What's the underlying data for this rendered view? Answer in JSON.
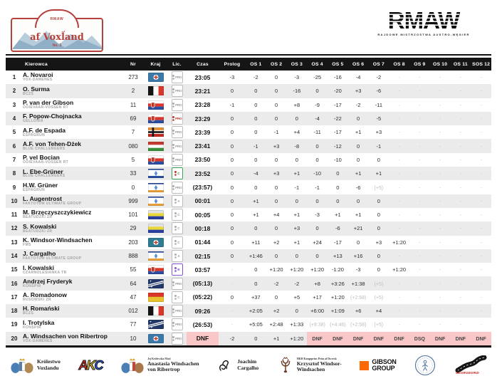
{
  "header": {
    "plate": {
      "series": "RMAW",
      "title": [
        "Rallye",
        "af Voxland"
      ],
      "edition": "No. 3"
    },
    "championship": {
      "logo": "RMAW",
      "subtitle": "RAJDOWE MISTRZOSTWA AUSTRO-WĘGIER"
    }
  },
  "colors": {
    "accent_red": "#b5413c",
    "header_bg": "#151515",
    "row_alt": "#ebebeb",
    "dnf_pink": "#f9c7c7",
    "muted_gray": "#bdbdbd"
  },
  "table": {
    "columns": [
      "",
      "Kierowca",
      "Nr",
      "Kraj",
      "Lic.",
      "Czas",
      "Prolog",
      "OS 1",
      "OS 2",
      "OS 3",
      "OS 4",
      "OS 5",
      "OS 6",
      "OS 7",
      "OS 8",
      "OS 9",
      "OS 10",
      "OS 11",
      "SOS 12"
    ],
    "rows": [
      {
        "pos": "1",
        "driver": "A. Novaroi",
        "team": "VOX-DAMENES",
        "nr": "273",
        "flag": "voxland-blue-cross",
        "lic": {
          "text": "PRO",
          "tone": "gray"
        },
        "czas": "23:05",
        "prolog": "-3",
        "stages": [
          "-2",
          "0",
          "-3",
          "-25",
          "-16",
          "-4",
          "-2",
          "-",
          "-",
          "-",
          "-",
          "-"
        ]
      },
      {
        "pos": "2",
        "driver": "O. Surma",
        "team": "BCZS",
        "nr": "2",
        "flag": "black-white-red",
        "lic": {
          "text": "PRO",
          "tone": "gray"
        },
        "czas": "23:21",
        "prolog": "0",
        "stages": [
          "0",
          "0",
          "-16",
          "0",
          "-20",
          "+3",
          "-6",
          "-",
          "-",
          "-",
          "-",
          "-"
        ]
      },
      {
        "pos": "3",
        "driver": "P. van der Gibson",
        "team": "OOIEVAAR-VOSSEN RT",
        "nr": "11",
        "flag": "slavic-crest",
        "lic": {
          "text": "PRO",
          "tone": "gray"
        },
        "czas": "23:28",
        "prolog": "-1",
        "stages": [
          "0",
          "0",
          "+8",
          "-9",
          "-17",
          "-2",
          "-11",
          "-",
          "-",
          "-",
          "-",
          "-"
        ]
      },
      {
        "pos": "4",
        "driver": "F. Popow-Chojnacka",
        "team": "GELLONIA",
        "nr": "69",
        "flag": "slavic-crest",
        "lic": {
          "text": "PRO",
          "tone": "red"
        },
        "czas": "23:29",
        "prolog": "0",
        "stages": [
          "0",
          "0",
          "0",
          "-4",
          "-22",
          "0",
          "-5",
          "-",
          "-",
          "-",
          "-",
          "-"
        ]
      },
      {
        "pos": "5",
        "driver": "A.F. de Espada",
        "team": "ESPAGRUN",
        "nr": "7",
        "flag": "nordic-orange",
        "lic": {
          "text": "PRO",
          "tone": "gray"
        },
        "czas": "23:39",
        "prolog": "0",
        "stages": [
          "0",
          "-1",
          "+4",
          "-11",
          "-17",
          "+1",
          "+3",
          "-",
          "-",
          "-",
          "-",
          "-"
        ]
      },
      {
        "pos": "6",
        "driver": "A.F. von Tehen-Dżek",
        "team": "BLUE CHALLENGERS",
        "nr": "080",
        "flag": "red-white-green",
        "lic": {
          "text": "PRO",
          "tone": "gray"
        },
        "czas": "23:41",
        "prolog": "0",
        "stages": [
          "-1",
          "+3",
          "-8",
          "0",
          "-12",
          "0",
          "-1",
          "-",
          "-",
          "-",
          "-",
          "-"
        ]
      },
      {
        "pos": "7",
        "driver": "P. vel Bocian",
        "team": "OOIEVAAR-VOSSEN RT",
        "nr": "5",
        "flag": "slavic-crest",
        "lic": {
          "text": "PRO",
          "tone": "gray"
        },
        "czas": "23:50",
        "prolog": "0",
        "stages": [
          "0",
          "0",
          "0",
          "0",
          "-10",
          "0",
          "0",
          "-",
          "-",
          "-",
          "-",
          "-"
        ]
      },
      {
        "pos": "8",
        "driver": "L. Ebe-Grüner",
        "team": "BLUE CHALLENGERS",
        "nr": "33",
        "flag": "white-star-navy",
        "lic": {
          "text": "C",
          "tone": "green"
        },
        "czas": "23:52",
        "prolog": "0",
        "stages": [
          "-4",
          "+3",
          "+1",
          "-10",
          "0",
          "+1",
          "+1",
          "-",
          "-",
          "-",
          "-",
          "-"
        ]
      },
      {
        "pos": "9",
        "driver": "H.W. Grüner",
        "team": "ESPAGRUN",
        "nr": "0",
        "flag": "white-star-orange",
        "lic": {
          "text": "PRO",
          "tone": "gray"
        },
        "czas": "(23:57)",
        "prolog": "0",
        "stages": [
          "0",
          "0",
          "-1",
          "-1",
          "0",
          "-6",
          "(+5)",
          "-",
          "-",
          "-",
          "-",
          "-"
        ]
      },
      {
        "pos": "10",
        "driver": "L. Augentrost",
        "team": "FAKTOTUM ULTIMATE GROUP",
        "nr": "999",
        "flag": "white-star-orange",
        "lic": {
          "text": "A",
          "tone": "gray"
        },
        "czas": "00:01",
        "prolog": "0",
        "stages": [
          "+1",
          "0",
          "0",
          "0",
          "0",
          "0",
          "0",
          "-",
          "-",
          "-",
          "-",
          "-"
        ]
      },
      {
        "pos": "11",
        "driver": "M. Brzęczyszczykiewicz",
        "team": "BEATUDZKI ZR",
        "nr": "101",
        "flag": "gray-yellow-blue",
        "lic": {
          "text": "C",
          "tone": "gray"
        },
        "czas": "00:05",
        "prolog": "0",
        "stages": [
          "+1",
          "+4",
          "+1",
          "-3",
          "+1",
          "+1",
          "0",
          "-",
          "-",
          "-",
          "-",
          "-"
        ]
      },
      {
        "pos": "12",
        "driver": "S. Kowalski",
        "team": "BEATUDZKI ZR",
        "nr": "29",
        "flag": "gray-yellow-blue",
        "lic": {
          "text": "C",
          "tone": "gray"
        },
        "czas": "00:18",
        "prolog": "0",
        "stages": [
          "0",
          "0",
          "+3",
          "0",
          "-6",
          "+21",
          "0",
          "-",
          "-",
          "-",
          "-",
          "-"
        ]
      },
      {
        "pos": "13",
        "driver": "K. Windsor-Windsachen",
        "team": "FMS",
        "nr": "203",
        "flag": "teal-cross",
        "lic": {
          "text": "C",
          "tone": "gray"
        },
        "czas": "01:44",
        "prolog": "0",
        "stages": [
          "+11",
          "+2",
          "+1",
          "+24",
          "-17",
          "0",
          "+3",
          "+1:20",
          "-",
          "-",
          "-",
          "-"
        ]
      },
      {
        "pos": "14",
        "driver": "J. Cargalho",
        "team": "FAKTOTUM ULTIMATE GROUP",
        "nr": "888",
        "flag": "white-star-orange",
        "lic": {
          "text": "A",
          "tone": "gray"
        },
        "czas": "02:15",
        "prolog": "0",
        "stages": [
          "+1:46",
          "0",
          "0",
          "0",
          "+13",
          "+16",
          "0",
          "-",
          "-",
          "-",
          "-",
          "-"
        ]
      },
      {
        "pos": "15",
        "driver": "I. Kowalski",
        "team": "CZARNOLESIANKA TR",
        "nr": "55",
        "flag": "slavic-crest",
        "lic": {
          "text": "B",
          "tone": "purple"
        },
        "czas": "03:57",
        "prolog": "-",
        "stages": [
          "0",
          "+1:20",
          "+1:20",
          "+1:20",
          "-1:20",
          "-3",
          "0",
          "+1:20",
          "-",
          "-",
          "-",
          "-"
        ]
      },
      {
        "pos": "16",
        "driver": "Andrzej Fryderyk",
        "team": "KONSPIR",
        "nr": "64",
        "flag": "navy-diagonal-stars",
        "lic": {
          "text": "PRO",
          "tone": "gray"
        },
        "czas": "(05:13)",
        "prolog": "-",
        "stages": [
          "0",
          "-2",
          "-2",
          "+8",
          "+3:26",
          "+1:38",
          "(+5)",
          "-",
          "-",
          "-",
          "-",
          "-"
        ]
      },
      {
        "pos": "17",
        "driver": "A. Romadonow",
        "team": "RUSOWSKI ZR",
        "nr": "47",
        "flag": "red-yellow",
        "lic": {
          "text": "C",
          "tone": "gray"
        },
        "czas": "(05:22)",
        "prolog": "0",
        "stages": [
          "+37",
          "0",
          "+5",
          "+17",
          "+1:20",
          "(+2:58)",
          "(+5)",
          "-",
          "-",
          "-",
          "-",
          "-"
        ]
      },
      {
        "pos": "18",
        "driver": "H. Romański",
        "team": "BCZS",
        "nr": "012",
        "flag": "black-white-red",
        "lic": {
          "text": "PRO",
          "tone": "gray"
        },
        "czas": "09:26",
        "prolog": "-",
        "stages": [
          "+2:05",
          "+2",
          "0",
          "+6:00",
          "+1:09",
          "+6",
          "+4",
          "-",
          "-",
          "-",
          "-",
          "-"
        ]
      },
      {
        "pos": "19",
        "driver": "I. Trotylska",
        "team": "KONSPIR",
        "nr": "77",
        "flag": "navy-diagonal-stars",
        "lic": {
          "text": "PRO",
          "tone": "gray"
        },
        "czas": "(26:53)",
        "prolog": "-",
        "stages": [
          "+5:05",
          "+2:48",
          "+1:33",
          "(+9:38)",
          "(+4:46)",
          "(+2:58)",
          "(+5)",
          "-",
          "-",
          "-",
          "-",
          "-"
        ]
      },
      {
        "pos": "20",
        "driver": "A. Windsachen von Ribertrop",
        "team": "VOX-DAMENES",
        "nr": "10",
        "flag": "voxland-blue-cross",
        "lic": {
          "text": "PRO",
          "tone": "gray"
        },
        "czas": "DNF",
        "prolog": "-2",
        "stages": [
          "0",
          "+1",
          "+1:20",
          "DNF",
          "DNF",
          "DNF",
          "DNF",
          "DNF",
          "DSQ",
          "DNF",
          "DNF",
          "DNF"
        ]
      }
    ]
  },
  "sponsors": [
    {
      "id": "kingdom-voxland",
      "lines": [
        "Królestwo",
        "Voxlandu"
      ],
      "icon": "voxland-coat-of-arms"
    },
    {
      "id": "akc",
      "letters": [
        "A",
        "K",
        "C"
      ],
      "colors": [
        "#d8372a",
        "#e8c22e",
        "#2b57d4"
      ]
    },
    {
      "id": "anastasia",
      "small": "Jej Królewska Mość",
      "lines": [
        "Anastasia Windsachen",
        "von Ribertrop"
      ],
      "icon": "royal-coat-of-arms"
    },
    {
      "id": "joachim-cargalho",
      "lines": [
        "Joachim",
        "Cargalho"
      ],
      "icon": "swan"
    },
    {
      "id": "krzysztof",
      "small": "HKH Kongeprins Prins af Dwersk",
      "lines": [
        "Krzysztof Windsor-",
        "Windsachen"
      ],
      "icon": "antlers-crown"
    },
    {
      "id": "gibson-group",
      "lines": [
        "GIBSON",
        "GROUP"
      ],
      "icon": "orange-square",
      "color": "#ff6a00"
    },
    {
      "id": "round-emblem",
      "icon": "round-figure-emblem"
    },
    {
      "id": "road",
      "icon": "winding-road",
      "caption": "GEORGEGRID"
    }
  ]
}
